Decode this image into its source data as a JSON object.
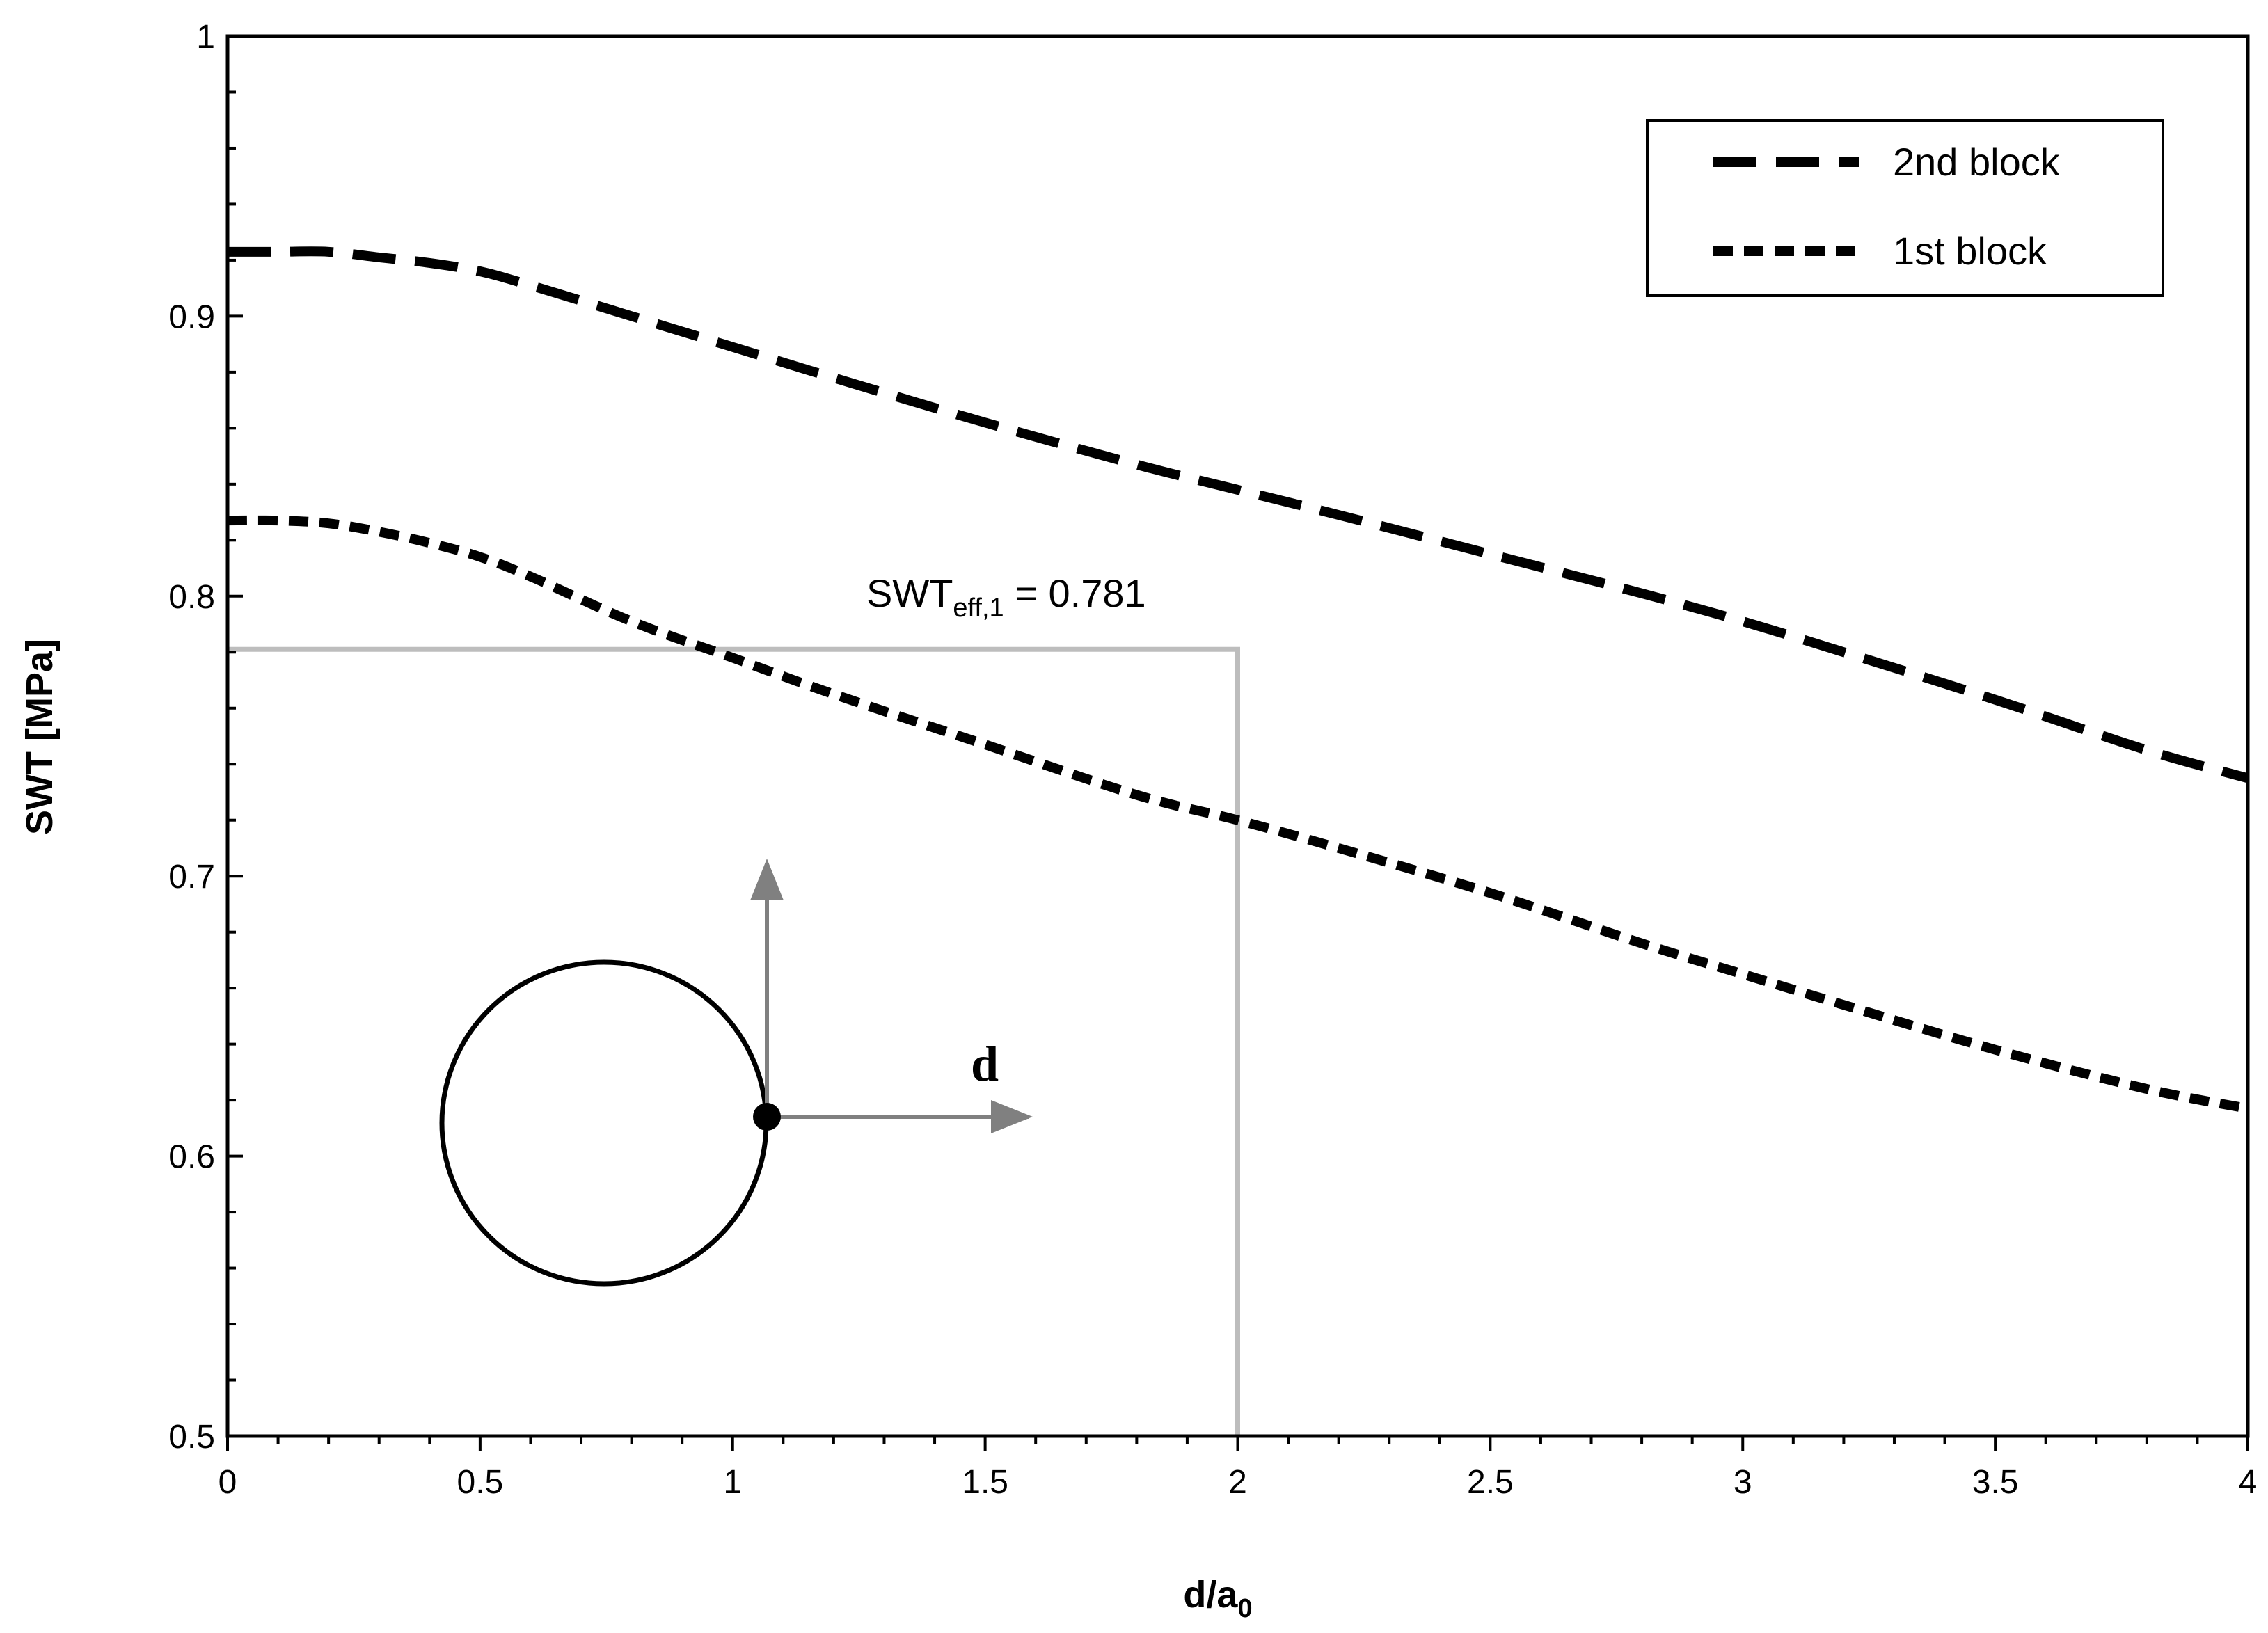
{
  "chart_data": {
    "type": "line",
    "title": "",
    "xlabel_main": "d/a",
    "xlabel_sub": "0",
    "ylabel": "SWT [MPa]",
    "xlim": [
      0,
      4
    ],
    "ylim": [
      0.5,
      1.0
    ],
    "x_ticks": [
      "0",
      "0.5",
      "1",
      "1.5",
      "2",
      "2.5",
      "3",
      "3.5",
      "4"
    ],
    "y_ticks": [
      "0.5",
      "0.6",
      "0.7",
      "0.8",
      "0.9",
      "1"
    ],
    "legend_position": "top-right",
    "grid": false,
    "series": [
      {
        "name": "2nd block",
        "style": "long-dash",
        "x": [
          0,
          0.1,
          0.2,
          0.3,
          0.4,
          0.5,
          0.6,
          0.8,
          1.0,
          1.2,
          1.5,
          1.8,
          2.0,
          2.2,
          2.5,
          2.8,
          3.0,
          3.2,
          3.5,
          3.8,
          4.0
        ],
        "y": [
          0.923,
          0.923,
          0.923,
          0.921,
          0.919,
          0.916,
          0.911,
          0.9,
          0.889,
          0.878,
          0.862,
          0.847,
          0.838,
          0.829,
          0.815,
          0.801,
          0.791,
          0.78,
          0.763,
          0.745,
          0.735
        ]
      },
      {
        "name": "1st block",
        "style": "short-dash",
        "x": [
          0,
          0.1,
          0.2,
          0.3,
          0.4,
          0.5,
          0.6,
          0.8,
          1.0,
          1.2,
          1.5,
          1.8,
          2.0,
          2.2,
          2.5,
          2.8,
          3.0,
          3.2,
          3.5,
          3.8,
          4.0
        ],
        "y": [
          0.827,
          0.827,
          0.826,
          0.823,
          0.819,
          0.814,
          0.807,
          0.791,
          0.778,
          0.765,
          0.747,
          0.729,
          0.72,
          0.71,
          0.694,
          0.676,
          0.665,
          0.654,
          0.638,
          0.624,
          0.617
        ]
      }
    ],
    "annotation": {
      "prefix": "SWT",
      "subscript": "eff,1",
      "suffix": " = 0.781",
      "x": 2.0,
      "y": 0.781,
      "line_color": "#bdbdbd"
    },
    "inset": {
      "label": "d",
      "circle_color": "#000000",
      "arrow_color": "#808080"
    }
  }
}
